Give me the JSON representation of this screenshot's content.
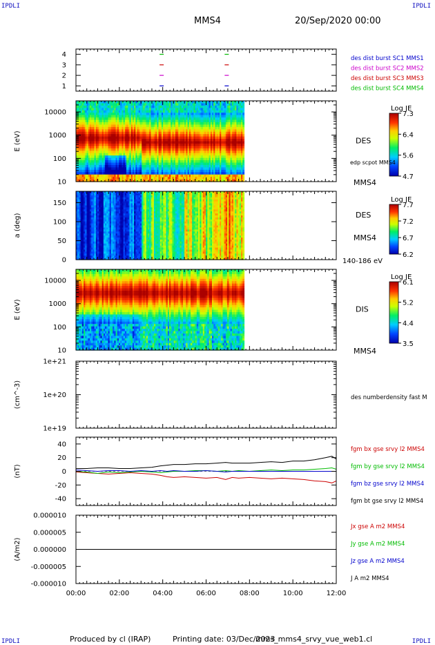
{
  "corner_label": "IPDLI",
  "header": {
    "spacecraft": "MMS4",
    "date": "20/Sep/2020 00:00"
  },
  "footer": {
    "produced_by": "Produced by cl (IRAP)",
    "printing_date": "Printing date: 03/Dec/2023",
    "filename": "mms_mms4_srvy_vue_web1.cl"
  },
  "time_axis": {
    "ticks": [
      "00:00",
      "02:00",
      "04:00",
      "06:00",
      "08:00",
      "10:00",
      "12:00"
    ],
    "range_hours": [
      0,
      12
    ]
  },
  "colors": {
    "c1": "#0000cc",
    "c2": "#cc00cc",
    "c3": "#cc0000",
    "c4": "#00bb00",
    "black": "#000000",
    "red": "#cc0000",
    "green": "#00bb00",
    "blue": "#0000cc"
  },
  "chart_data": [
    {
      "type": "scatter",
      "panel": "burst-availability",
      "ylim": [
        0.5,
        4.5
      ],
      "yticks": [
        "1",
        "2",
        "3",
        "4"
      ],
      "legend": [
        {
          "label": "des dist burst SC1 MMS1",
          "color": "#0000cc",
          "level": 1,
          "times_h": [
            3.95,
            6.95
          ]
        },
        {
          "label": "des dist burst SC2 MMS2",
          "color": "#cc00cc",
          "level": 2,
          "times_h": [
            3.95,
            6.95
          ]
        },
        {
          "label": "des dist burst SC3 MMS3",
          "color": "#cc0000",
          "level": 3,
          "times_h": [
            3.95,
            6.95
          ]
        },
        {
          "label": "des dist burst SC4 MMS4",
          "color": "#00bb00",
          "level": 4,
          "times_h": [
            3.95,
            6.95
          ]
        }
      ]
    },
    {
      "type": "heatmap",
      "panel": "des-energy",
      "ylabel": "E (eV)",
      "yscale": "log",
      "ylim": [
        10,
        30000
      ],
      "yticks": [
        "10",
        "100",
        "1000",
        "10000"
      ],
      "data_end_h": 7.75,
      "label": "DES",
      "sublabel": "edp scpot MMS4",
      "spacecraft_label": "MMS4",
      "colorbar": {
        "title": "Log JE",
        "ticks": [
          "7.3",
          "6.4",
          "5.6",
          "4.7"
        ],
        "range": [
          4.7,
          7.3
        ]
      }
    },
    {
      "type": "heatmap",
      "panel": "des-pitch-angle",
      "ylabel": "a (deg)",
      "ylim": [
        0,
        180
      ],
      "yticks": [
        "0",
        "50",
        "100",
        "150"
      ],
      "data_end_h": 7.75,
      "label": "DES",
      "spacecraft_label": "MMS4",
      "energy_range": "140-186 eV",
      "colorbar": {
        "title": "Log JE",
        "ticks": [
          "7.7",
          "7.2",
          "6.7",
          "6.2"
        ],
        "range": [
          6.2,
          7.7
        ]
      }
    },
    {
      "type": "heatmap",
      "panel": "dis-energy",
      "ylabel": "E (eV)",
      "yscale": "log",
      "ylim": [
        10,
        30000
      ],
      "yticks": [
        "10",
        "100",
        "1000",
        "10000"
      ],
      "data_end_h": 7.75,
      "label": "DIS",
      "spacecraft_label": "MMS4",
      "colorbar": {
        "title": "Log JE",
        "ticks": [
          "6.1",
          "5.2",
          "4.4",
          "3.5"
        ],
        "range": [
          3.5,
          6.1
        ]
      }
    },
    {
      "type": "line",
      "panel": "number-density",
      "ylabel": "(cm^-3)",
      "yscale": "log",
      "ylim": [
        1e+19,
        1e+21
      ],
      "yticks": [
        "1e+21",
        "1e+20",
        "1e+19"
      ],
      "legend": [
        {
          "label": "des numberdensity fast M",
          "color": "#000000"
        }
      ],
      "series": []
    },
    {
      "type": "line",
      "panel": "magnetic-field",
      "ylabel": "(nT)",
      "ylim": [
        -50,
        50
      ],
      "yticks": [
        "40",
        "20",
        "0",
        "-20",
        "-40"
      ],
      "x_h": [
        0,
        0.5,
        1,
        1.5,
        2,
        2.5,
        3,
        3.5,
        3.9,
        4.2,
        4.5,
        5,
        5.5,
        6,
        6.5,
        6.9,
        7.2,
        7.5,
        8,
        8.5,
        9,
        9.5,
        10,
        10.5,
        11,
        11.5,
        11.8,
        12
      ],
      "series": [
        {
          "name": "fgm bx gse srvy l2 MMS4",
          "color": "#cc0000",
          "values": [
            -1,
            -2,
            -3,
            -4,
            -3,
            -2,
            -3,
            -4,
            -6,
            -8,
            -9,
            -8,
            -9,
            -10,
            -9,
            -12,
            -9,
            -10,
            -9,
            -10,
            -11,
            -10,
            -11,
            -12,
            -14,
            -15,
            -17,
            -14
          ]
        },
        {
          "name": "fgm by gse srvy l2 MMS4",
          "color": "#00bb00",
          "values": [
            0,
            -1,
            -3,
            -1,
            -2,
            -1,
            0,
            -1,
            -2,
            -1,
            0,
            0,
            1,
            1,
            0,
            1,
            0,
            1,
            0,
            1,
            2,
            1,
            2,
            2,
            3,
            4,
            5,
            3
          ]
        },
        {
          "name": "fgm bz gse srvy l2 MMS4",
          "color": "#0000cc",
          "values": [
            2,
            1,
            0,
            1,
            1,
            0,
            1,
            0,
            1,
            0,
            1,
            0,
            0,
            1,
            0,
            -1,
            0,
            0,
            0,
            0,
            0,
            0,
            0,
            0,
            0,
            0,
            0,
            0
          ]
        },
        {
          "name": "fgm bt gse srvy l2 MMS4",
          "color": "#000000",
          "values": [
            4,
            4,
            5,
            5,
            4,
            4,
            5,
            6,
            8,
            9,
            10,
            10,
            11,
            11,
            12,
            13,
            12,
            12,
            12,
            13,
            14,
            13,
            15,
            15,
            17,
            20,
            22,
            18
          ]
        }
      ]
    },
    {
      "type": "line",
      "panel": "current-density",
      "ylabel": "(A/m2)",
      "ylim": [
        -1e-05,
        1e-05
      ],
      "yticks": [
        "0.000010",
        "0.000005",
        "0.000000",
        "-0.000005",
        "-0.000010"
      ],
      "x_h": [
        0,
        12
      ],
      "series": [
        {
          "name": "Jx gse A m2 MMS4",
          "color": "#cc0000",
          "values": []
        },
        {
          "name": "Jy gse A m2 MMS4",
          "color": "#00bb00",
          "values": []
        },
        {
          "name": "Jz gse A m2 MMS4",
          "color": "#0000cc",
          "values": []
        },
        {
          "name": "J A m2 MMS4",
          "color": "#000000",
          "values": [
            0,
            0
          ]
        }
      ]
    }
  ]
}
